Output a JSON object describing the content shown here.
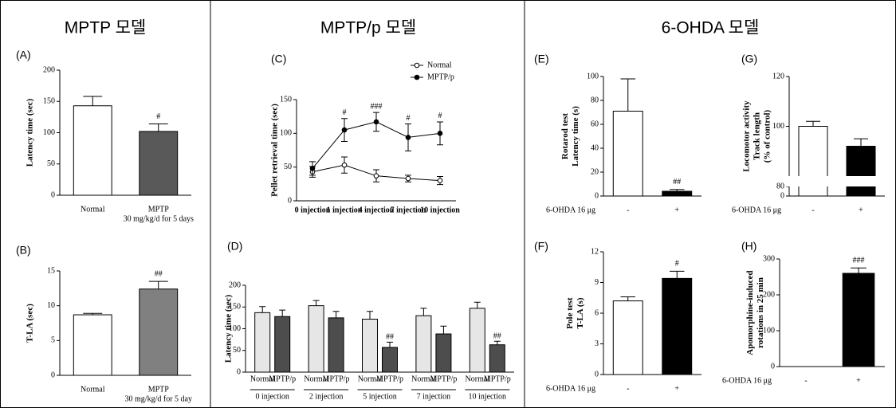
{
  "headers": [
    "MPTP 모델",
    "MPTP/p 모델",
    "6-OHDA 모델"
  ],
  "chart_data": [
    {
      "panel": "(A)",
      "type": "bar",
      "categories": [
        "Normal",
        "MPTP"
      ],
      "category_note": "30 mg/kg/d for 5 days",
      "values": [
        143,
        102
      ],
      "errors": [
        15,
        12
      ],
      "colors": [
        "#ffffff",
        "#595959"
      ],
      "annotations": [
        null,
        "#"
      ],
      "ylabel": [
        "Latency time (sec)"
      ],
      "ylim": [
        0,
        200
      ],
      "yticks": [
        0,
        50,
        100,
        150,
        200
      ]
    },
    {
      "panel": "(B)",
      "type": "bar",
      "categories": [
        "Normal",
        "MPTP"
      ],
      "category_note": "30 mg/kg/d for 5 day",
      "values": [
        8.7,
        12.4
      ],
      "errors": [
        0.2,
        1.1
      ],
      "colors": [
        "#ffffff",
        "#808080"
      ],
      "annotations": [
        null,
        "##"
      ],
      "ylabel": [
        "T-LA (sec)"
      ],
      "ylim": [
        0,
        15
      ],
      "yticks": [
        0,
        5,
        10,
        15
      ]
    },
    {
      "panel": "(C)",
      "type": "line",
      "categories": [
        "0 injection",
        "1 injection",
        "4 injection",
        "7 injection",
        "10 injection"
      ],
      "series": [
        {
          "name": "Normal",
          "color": "#000000",
          "marker_fill": "#ffffff",
          "values": [
            43,
            53,
            37,
            33,
            30
          ],
          "errors": [
            8,
            12,
            9,
            5,
            6
          ],
          "annotations": [
            null,
            null,
            null,
            null,
            null
          ]
        },
        {
          "name": "MPTP/p",
          "color": "#000000",
          "marker_fill": "#000000",
          "values": [
            48,
            105,
            117,
            94,
            100
          ],
          "errors": [
            10,
            17,
            14,
            20,
            17
          ],
          "annotations": [
            null,
            "#",
            "###",
            "#",
            "#"
          ]
        }
      ],
      "ylabel": [
        "Pellet retrieval time (sec)"
      ],
      "ylim": [
        0,
        150
      ],
      "yticks": [
        0,
        50,
        100,
        150
      ]
    },
    {
      "panel": "(D)",
      "type": "grouped_bar",
      "categories": [
        "0 injection",
        "2 injection",
        "5 injection",
        "7 injection",
        "10 injection"
      ],
      "series": [
        {
          "name": "Normal",
          "color": "#e6e6e6",
          "values": [
            137,
            153,
            122,
            130,
            147
          ],
          "errors": [
            14,
            12,
            18,
            17,
            14
          ],
          "annotations": [
            null,
            null,
            null,
            null,
            null
          ]
        },
        {
          "name": "MPTP/p",
          "color": "#4d4d4d",
          "values": [
            128,
            125,
            57,
            88,
            63
          ],
          "errors": [
            15,
            15,
            12,
            18,
            8
          ],
          "annotations": [
            null,
            null,
            "##",
            null,
            "##"
          ]
        }
      ],
      "ylabel": [
        "Latency time (sec)"
      ],
      "ylim": [
        0,
        200
      ],
      "yticks": [
        0,
        50,
        100,
        150,
        200
      ]
    },
    {
      "panel": "(E)",
      "type": "bar",
      "xlabel": "6-OHDA 16 μg",
      "categories": [
        "-",
        "+"
      ],
      "values": [
        71,
        4
      ],
      "errors": [
        27,
        1.5
      ],
      "colors": [
        "#ffffff",
        "#000000"
      ],
      "annotations": [
        null,
        "##"
      ],
      "ylabel": [
        "Rotarod test",
        "Latency time (s)"
      ],
      "ylim": [
        0,
        100
      ],
      "yticks": [
        0,
        20,
        40,
        60,
        80,
        100
      ]
    },
    {
      "panel": "(F)",
      "type": "bar",
      "xlabel": "6-OHDA 16 μg",
      "categories": [
        "-",
        "+"
      ],
      "values": [
        7.2,
        9.4
      ],
      "errors": [
        0.4,
        0.7
      ],
      "colors": [
        "#ffffff",
        "#000000"
      ],
      "annotations": [
        null,
        "#"
      ],
      "ylabel": [
        "Pole test",
        "T-LA (s)"
      ],
      "ylim": [
        0,
        12
      ],
      "yticks": [
        0,
        3,
        6,
        9,
        12
      ]
    },
    {
      "panel": "(G)",
      "type": "bar",
      "xlabel": "6-OHDA 16 μg",
      "categories": [
        "-",
        "+"
      ],
      "broken_axis": true,
      "values": [
        100,
        92
      ],
      "errors": [
        2,
        3
      ],
      "colors": [
        "#ffffff",
        "#000000"
      ],
      "annotations": [
        null,
        null
      ],
      "ylabel": [
        "Locomotor activity",
        "Track length",
        "(% of control)"
      ],
      "ylim": [
        0,
        120
      ],
      "yticks": [
        0,
        80,
        100,
        120
      ]
    },
    {
      "panel": "(H)",
      "type": "bar",
      "xlabel": "6-OHDA 16 μg",
      "categories": [
        "-",
        "+"
      ],
      "values": [
        0,
        260
      ],
      "errors": [
        0,
        15
      ],
      "colors": [
        "#ffffff",
        "#000000"
      ],
      "annotations": [
        null,
        "###"
      ],
      "ylabel": [
        "Apomorphine-induced",
        "rotations in 25 min"
      ],
      "ylim": [
        0,
        300
      ],
      "yticks": [
        0,
        100,
        200,
        300
      ]
    }
  ]
}
